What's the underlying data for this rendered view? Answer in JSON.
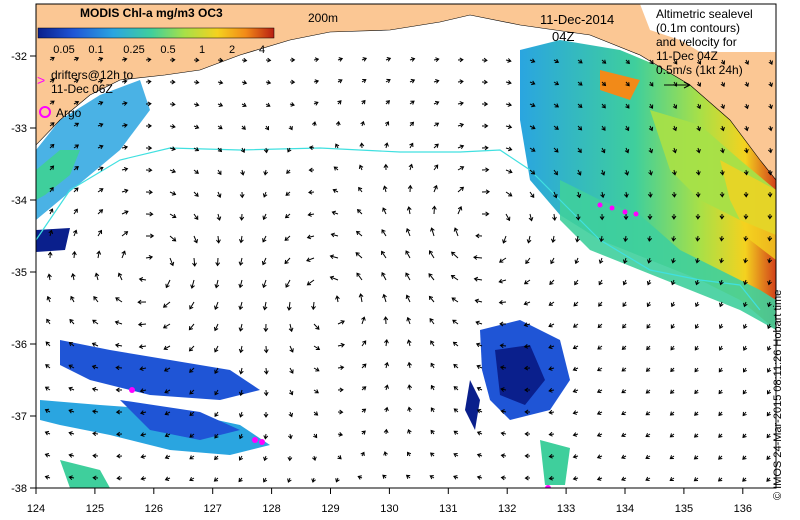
{
  "colorbar": {
    "title": "MODIS Chl-a mg/m3 OC3",
    "ticks": [
      "0.05",
      "0.1",
      "0.25",
      "0.5",
      "1",
      "2",
      "4"
    ],
    "colors": [
      "#0a1f8c",
      "#1f55d6",
      "#2aa5e0",
      "#3fcf9c",
      "#a7e048",
      "#f4d21f",
      "#f28a18",
      "#b81e12"
    ]
  },
  "bathymetry_label": "200m",
  "date_label": "11-Dec-2014",
  "time_label": "04Z",
  "legend": {
    "drifters_line1": "drifters@12h to",
    "drifters_line2": "11-Dec 06Z",
    "argo": "Argo",
    "drifter_marker": ">"
  },
  "altimetry_note": {
    "line1": "Altimetric sealevel",
    "line2": "(0.1m contours)",
    "line3": "and velocity for",
    "line4": "11-Dec 04Z",
    "line5": "0.5m/s (1kt 24h)"
  },
  "credit": "© IMOS 24-Mar-2015 08:11:26 Hobart time",
  "axes": {
    "lon_ticks": [
      "124",
      "125",
      "126",
      "127",
      "128",
      "129",
      "130",
      "131",
      "132",
      "133",
      "134",
      "135",
      "136"
    ],
    "lat_ticks": [
      "-32",
      "-33",
      "-34",
      "-35",
      "-36",
      "-37",
      "-38"
    ]
  },
  "colors": {
    "land": "#fbc794",
    "ocean": "#ffffff",
    "contour": "#40e0e0",
    "drifter": "#ff00ff"
  }
}
